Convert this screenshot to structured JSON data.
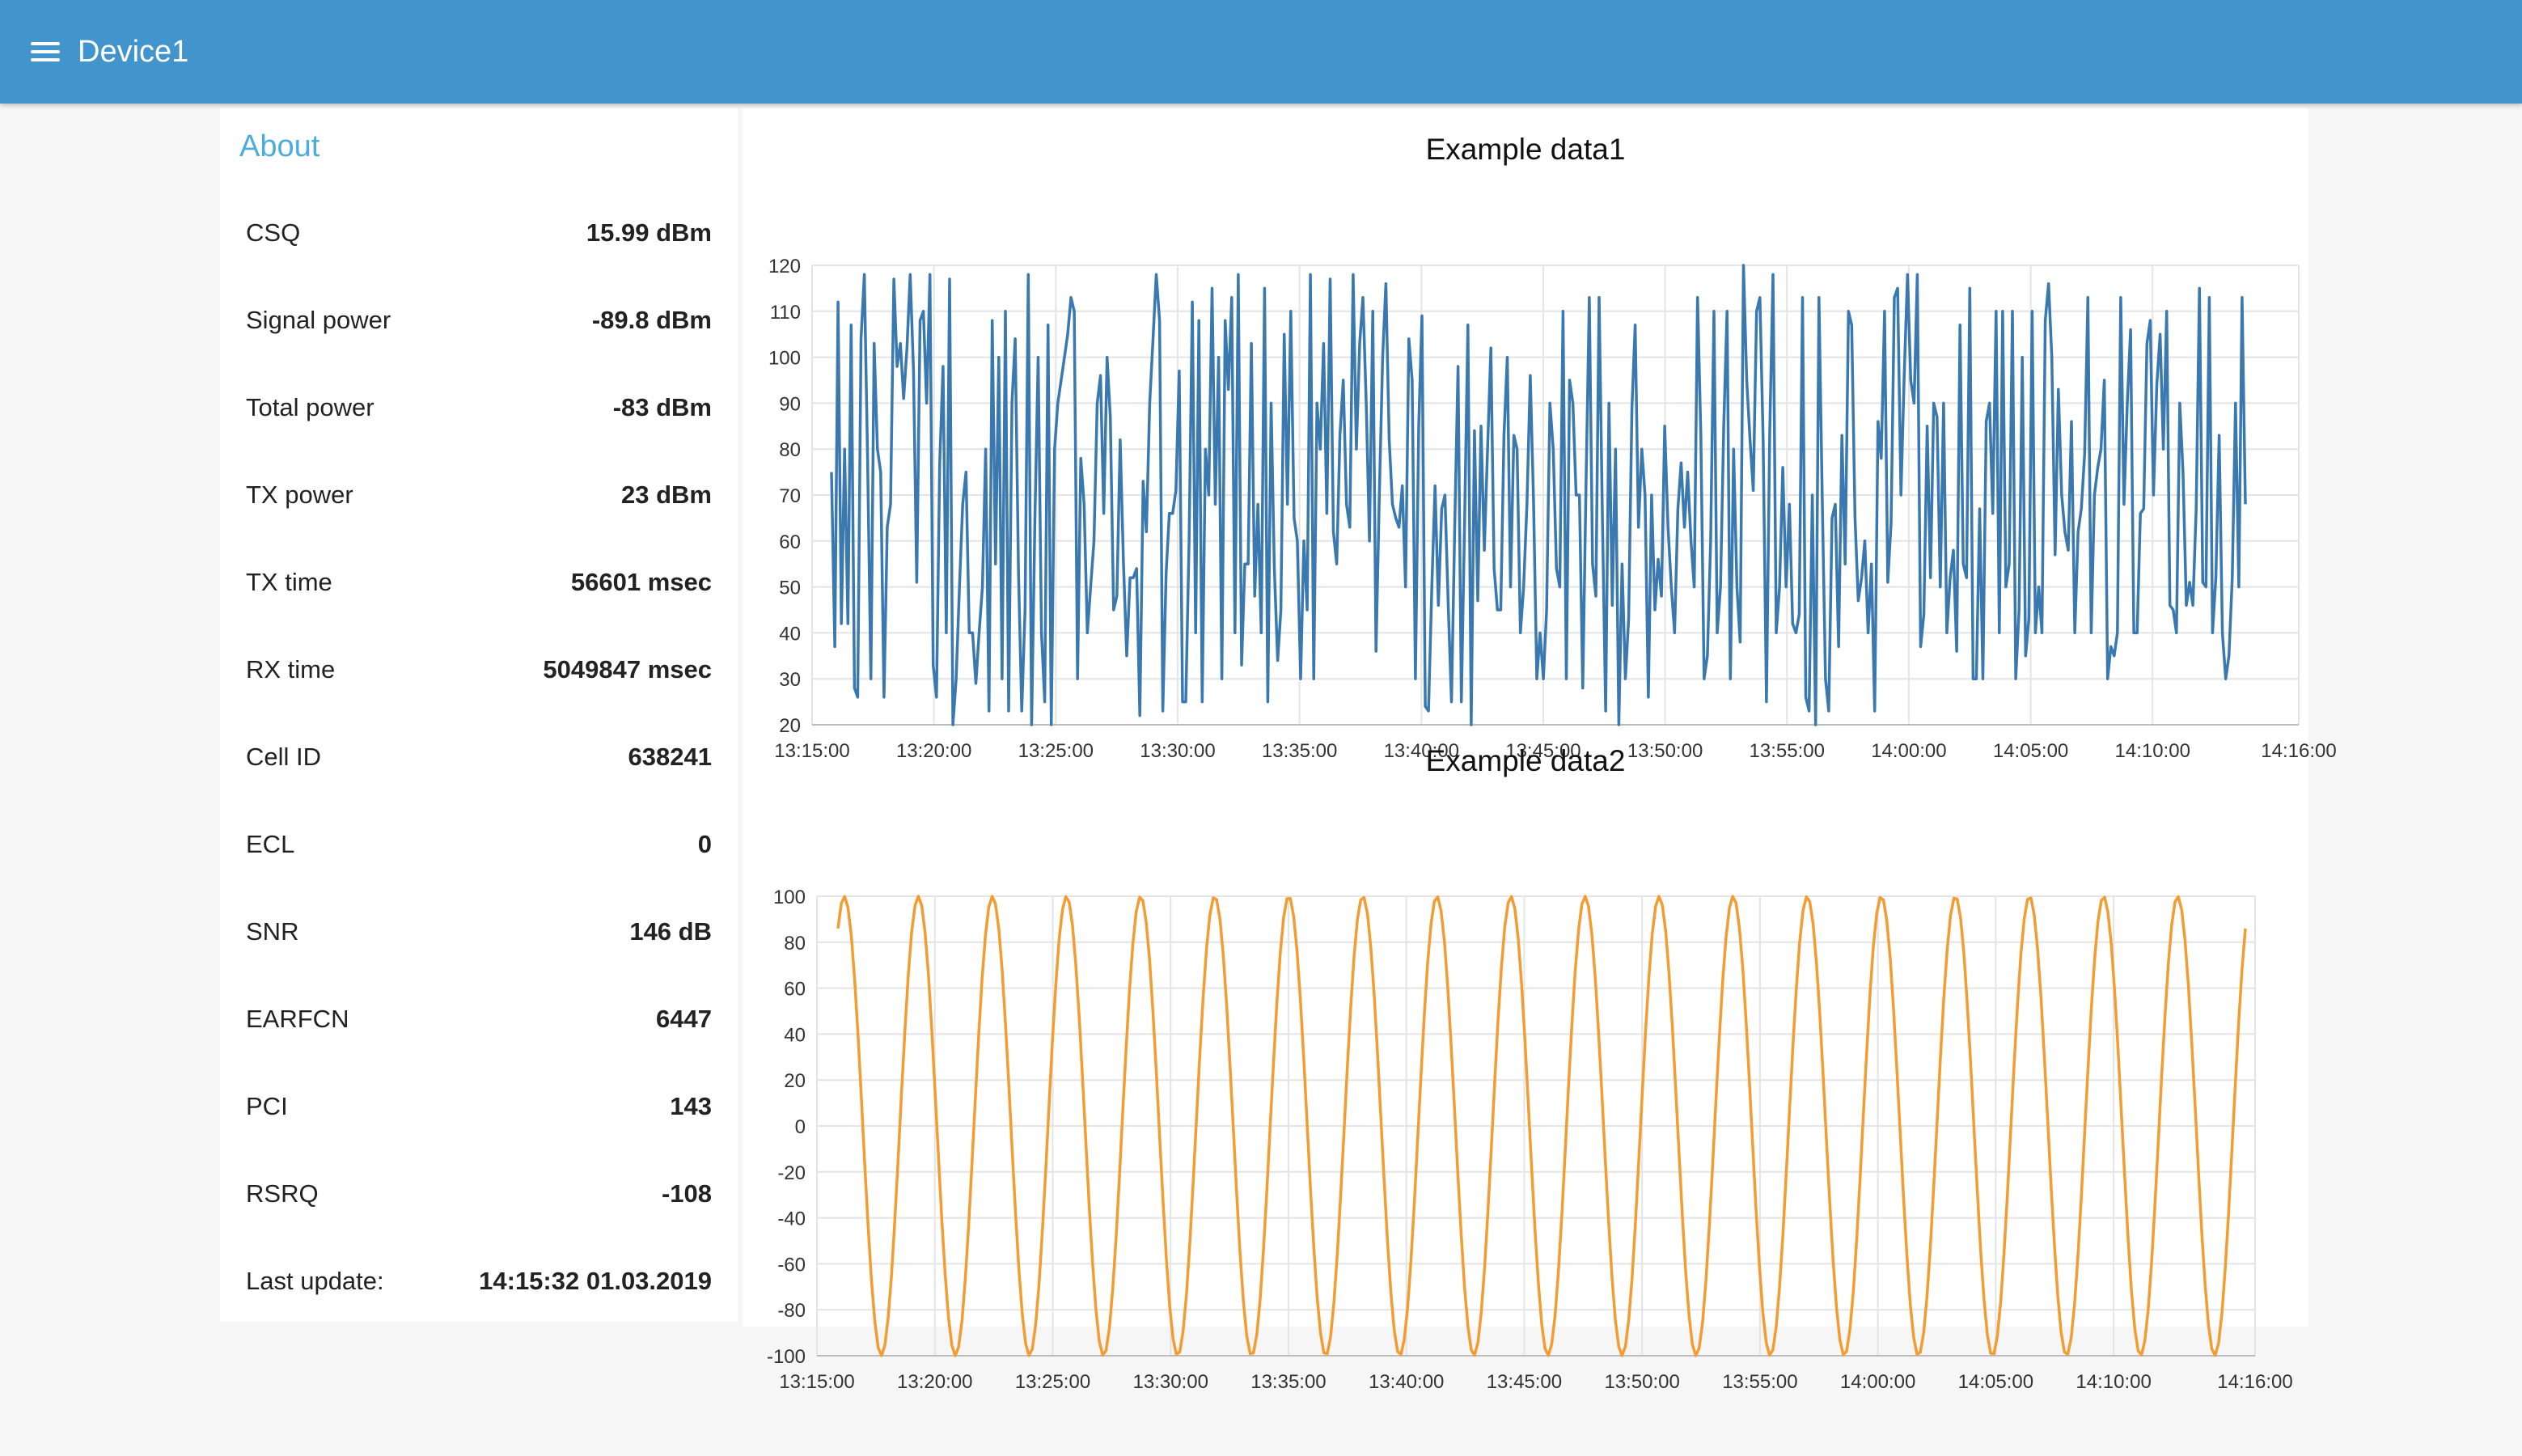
{
  "header": {
    "title": "Device1",
    "menu_icon": "menu-icon"
  },
  "colors": {
    "header": "#4294cc",
    "accent": "#4dacde",
    "series1": "#3a78b0",
    "series2": "#f39c32"
  },
  "about": {
    "title": "About",
    "rows": [
      {
        "label": "CSQ",
        "value": "15.99 dBm"
      },
      {
        "label": "Signal power",
        "value": "-89.8 dBm"
      },
      {
        "label": "Total power",
        "value": "-83 dBm"
      },
      {
        "label": "TX power",
        "value": "23 dBm"
      },
      {
        "label": "TX time",
        "value": "56601 msec"
      },
      {
        "label": "RX time",
        "value": "5049847 msec"
      },
      {
        "label": "Cell ID",
        "value": "638241"
      },
      {
        "label": "ECL",
        "value": "0"
      },
      {
        "label": "SNR",
        "value": "146 dB"
      },
      {
        "label": "EARFCN",
        "value": "6447"
      },
      {
        "label": "PCI",
        "value": "143"
      },
      {
        "label": "RSRQ",
        "value": "-108"
      },
      {
        "label": "Last update:",
        "value": "14:15:32 01.03.2019"
      }
    ]
  },
  "chart_data": [
    {
      "type": "line",
      "title": "Example data1",
      "xlabel": "",
      "ylabel": "",
      "ylim": [
        20,
        120
      ],
      "yticks": [
        20,
        30,
        40,
        50,
        60,
        70,
        80,
        90,
        100,
        110,
        120
      ],
      "xrange": [
        "13:15:00",
        "14:16:00"
      ],
      "xticks": [
        "13:15:00",
        "13:20:00",
        "13:25:00",
        "13:30:00",
        "13:35:00",
        "13:40:00",
        "13:45:00",
        "13:50:00",
        "13:55:00",
        "14:00:00",
        "14:05:00",
        "14:10:00",
        "14:16:00"
      ],
      "grid": true,
      "series": [
        {
          "color": "#3a78b0",
          "values": [
            75,
            37,
            112,
            42,
            80,
            42,
            107,
            28,
            26,
            104,
            118,
            78,
            30,
            103,
            80,
            75,
            26,
            63,
            68,
            117,
            98,
            103,
            91,
            102,
            118,
            97,
            51,
            108,
            110,
            90,
            118,
            33,
            26,
            77,
            98,
            40,
            117,
            20,
            30,
            50,
            68,
            75,
            40,
            40,
            29,
            40,
            50,
            80,
            23,
            108,
            55,
            100,
            30,
            110,
            23,
            90,
            104,
            53,
            23,
            45,
            118,
            20,
            65,
            100,
            40,
            25,
            107,
            20,
            80,
            90,
            95,
            100,
            105,
            113,
            110,
            30,
            78,
            68,
            40,
            50,
            60,
            90,
            96,
            66,
            100,
            87,
            45,
            48,
            82,
            55,
            35,
            52,
            52,
            54,
            22,
            73,
            62,
            90,
            104,
            118,
            108,
            23,
            53,
            66,
            66,
            71,
            97,
            25,
            25,
            60,
            112,
            40,
            108,
            25,
            80,
            70,
            115,
            68,
            100,
            30,
            108,
            93,
            113,
            40,
            118,
            33,
            55,
            55,
            103,
            48,
            68,
            40,
            115,
            25,
            90,
            54,
            34,
            45,
            105,
            68,
            110,
            65,
            60,
            30,
            60,
            45,
            118,
            30,
            90,
            80,
            103,
            66,
            117,
            62,
            55,
            83,
            95,
            68,
            63,
            118,
            80,
            103,
            113,
            90,
            60,
            110,
            36,
            70,
            100,
            116,
            82,
            68,
            65,
            63,
            72,
            50,
            104,
            95,
            30,
            85,
            109,
            24,
            23,
            50,
            72,
            46,
            67,
            70,
            46,
            25,
            64,
            98,
            25,
            64,
            107,
            20,
            84,
            47,
            85,
            58,
            80,
            102,
            54,
            45,
            45,
            83,
            100,
            50,
            83,
            80,
            40,
            50,
            68,
            96,
            69,
            30,
            40,
            30,
            45,
            90,
            80,
            54,
            50,
            110,
            30,
            95,
            90,
            70,
            70,
            28,
            72,
            113,
            55,
            48,
            113,
            65,
            23,
            90,
            46,
            80,
            20,
            55,
            30,
            43,
            89,
            107,
            63,
            80,
            70,
            26,
            70,
            45,
            56,
            48,
            85,
            63,
            50,
            40,
            67,
            77,
            63,
            75,
            60,
            50,
            113,
            83,
            30,
            35,
            60,
            110,
            40,
            50,
            85,
            110,
            30,
            80,
            50,
            38,
            120,
            95,
            82,
            71,
            110,
            113,
            82,
            25,
            83,
            118,
            40,
            50,
            76,
            50,
            68,
            42,
            40,
            44,
            113,
            26,
            23,
            70,
            20,
            113,
            70,
            30,
            23,
            65,
            68,
            37,
            83,
            55,
            110,
            107,
            65,
            47,
            52,
            60,
            40,
            55,
            23,
            86,
            78,
            110,
            51,
            64,
            113,
            115,
            70,
            96,
            118,
            95,
            90,
            118,
            37,
            44,
            85,
            52,
            90,
            87,
            50,
            90,
            40,
            52,
            58,
            36,
            107,
            55,
            52,
            115,
            30,
            30,
            67,
            30,
            86,
            90,
            66,
            110,
            40,
            110,
            50,
            55,
            110,
            30,
            45,
            100,
            35,
            43,
            110,
            40,
            50,
            40,
            108,
            116,
            100,
            57,
            93,
            70,
            62,
            58,
            86,
            40,
            62,
            67,
            79,
            113,
            40,
            70,
            76,
            80,
            95,
            30,
            37,
            35,
            40,
            113,
            68,
            90,
            106,
            40,
            40,
            66,
            67,
            103,
            108,
            70,
            94,
            105,
            80,
            110,
            46,
            45,
            40,
            90,
            75,
            46,
            51,
            46,
            67,
            115,
            51,
            50,
            113,
            40,
            52,
            83,
            40,
            30,
            35,
            52,
            90,
            50,
            113,
            68
          ]
        }
      ]
    },
    {
      "type": "line",
      "title": "Example data2",
      "xlabel": "",
      "ylabel": "",
      "ylim": [
        -100,
        100
      ],
      "yticks": [
        -100,
        -80,
        -60,
        -40,
        -20,
        0,
        20,
        40,
        60,
        80,
        100
      ],
      "xrange": [
        "13:15:00",
        "14:16:00"
      ],
      "xticks": [
        "13:15:00",
        "13:20:00",
        "13:25:00",
        "13:30:00",
        "13:35:00",
        "13:40:00",
        "13:45:00",
        "13:50:00",
        "13:55:00",
        "14:00:00",
        "14:05:00",
        "14:10:00",
        "14:16:00"
      ],
      "grid": true,
      "series": [
        {
          "color": "#f39c32",
          "waveform": "sine",
          "amplitude": 100,
          "cycles": 19,
          "start_value": 86,
          "end_value": 86
        }
      ]
    }
  ]
}
